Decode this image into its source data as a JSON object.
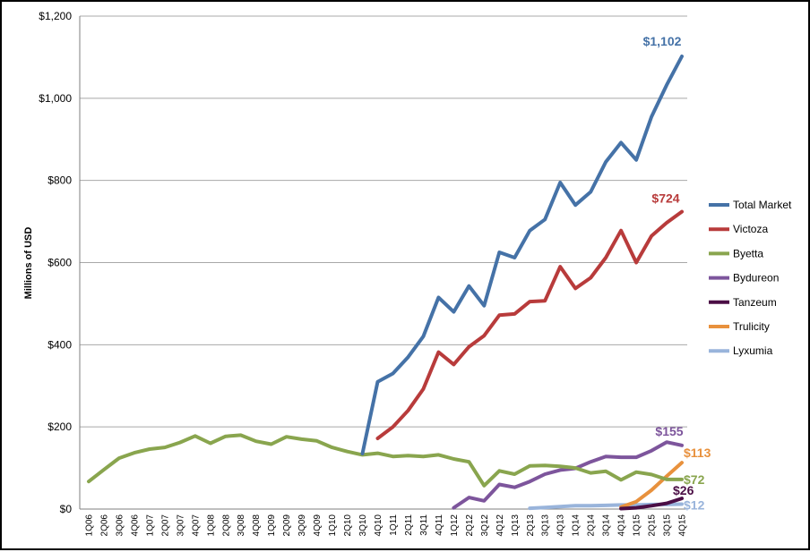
{
  "chart_data": {
    "type": "line",
    "ylabel": "Millions of USD",
    "ylim": [
      0,
      1200
    ],
    "yticks": [
      0,
      200,
      400,
      600,
      800,
      1000,
      1200
    ],
    "ytick_labels": [
      "$0",
      "$200",
      "$400",
      "$600",
      "$800",
      "$1,000",
      "$1,200"
    ],
    "grid": true,
    "legend_position": "right",
    "x": [
      "1Q06",
      "2Q06",
      "3Q06",
      "4Q06",
      "1Q07",
      "2Q07",
      "3Q07",
      "4Q07",
      "1Q08",
      "2Q08",
      "3Q08",
      "4Q08",
      "1Q09",
      "2Q09",
      "3Q09",
      "4Q09",
      "1Q10",
      "2Q10",
      "3Q10",
      "4Q10",
      "1Q11",
      "2Q11",
      "3Q11",
      "4Q11",
      "1Q12",
      "2Q12",
      "3Q12",
      "4Q12",
      "1Q13",
      "2Q13",
      "3Q13",
      "4Q13",
      "1Q14",
      "2Q14",
      "3Q14",
      "4Q14",
      "1Q15",
      "2Q15",
      "3Q15",
      "4Q15"
    ],
    "series": [
      {
        "name": "Total Market",
        "color": "#4572A7",
        "end_label": "$1,102",
        "values": [
          null,
          null,
          null,
          null,
          null,
          null,
          null,
          null,
          null,
          null,
          null,
          null,
          null,
          null,
          null,
          null,
          null,
          null,
          135,
          310,
          330,
          370,
          420,
          515,
          480,
          543,
          495,
          625,
          612,
          678,
          705,
          795,
          740,
          772,
          845,
          892,
          850,
          955,
          1032,
          1102
        ]
      },
      {
        "name": "Victoza",
        "color": "#B83B3B",
        "end_label": "$724",
        "values": [
          null,
          null,
          null,
          null,
          null,
          null,
          null,
          null,
          null,
          null,
          null,
          null,
          null,
          null,
          null,
          null,
          null,
          null,
          null,
          172,
          200,
          240,
          292,
          382,
          352,
          395,
          422,
          472,
          475,
          505,
          507,
          590,
          537,
          563,
          612,
          678,
          600,
          665,
          697,
          724
        ]
      },
      {
        "name": "Byetta",
        "color": "#89A54E",
        "end_label": "$72",
        "values": [
          67,
          96,
          124,
          137,
          146,
          150,
          162,
          178,
          160,
          177,
          180,
          165,
          158,
          176,
          170,
          166,
          150,
          140,
          132,
          136,
          128,
          130,
          128,
          132,
          122,
          115,
          57,
          93,
          85,
          105,
          106,
          104,
          100,
          88,
          92,
          71,
          90,
          84,
          72,
          72
        ]
      },
      {
        "name": "Bydureon",
        "color": "#7D559C",
        "end_label": "$155",
        "values": [
          null,
          null,
          null,
          null,
          null,
          null,
          null,
          null,
          null,
          null,
          null,
          null,
          null,
          null,
          null,
          null,
          null,
          null,
          null,
          null,
          null,
          null,
          null,
          null,
          3,
          28,
          20,
          60,
          53,
          67,
          85,
          95,
          99,
          115,
          128,
          126,
          126,
          142,
          163,
          155
        ]
      },
      {
        "name": "Tanzeum",
        "color": "#4B0E45",
        "end_label": "$26",
        "values": [
          null,
          null,
          null,
          null,
          null,
          null,
          null,
          null,
          null,
          null,
          null,
          null,
          null,
          null,
          null,
          null,
          null,
          null,
          null,
          null,
          null,
          null,
          null,
          null,
          null,
          null,
          null,
          null,
          null,
          null,
          null,
          null,
          null,
          null,
          null,
          1,
          3,
          8,
          14,
          26
        ]
      },
      {
        "name": "Trulicity",
        "color": "#E8913D",
        "end_label": "$113",
        "values": [
          null,
          null,
          null,
          null,
          null,
          null,
          null,
          null,
          null,
          null,
          null,
          null,
          null,
          null,
          null,
          null,
          null,
          null,
          null,
          null,
          null,
          null,
          null,
          null,
          null,
          null,
          null,
          null,
          null,
          null,
          null,
          null,
          null,
          null,
          null,
          5,
          18,
          46,
          80,
          113
        ]
      },
      {
        "name": "Lyxumia",
        "color": "#99B4DB",
        "end_label": "$12",
        "values": [
          null,
          null,
          null,
          null,
          null,
          null,
          null,
          null,
          null,
          null,
          null,
          null,
          null,
          null,
          null,
          null,
          null,
          null,
          null,
          null,
          null,
          null,
          null,
          null,
          null,
          null,
          null,
          null,
          null,
          2,
          4,
          6,
          8,
          8,
          9,
          10,
          10,
          11,
          11,
          12
        ]
      }
    ]
  }
}
